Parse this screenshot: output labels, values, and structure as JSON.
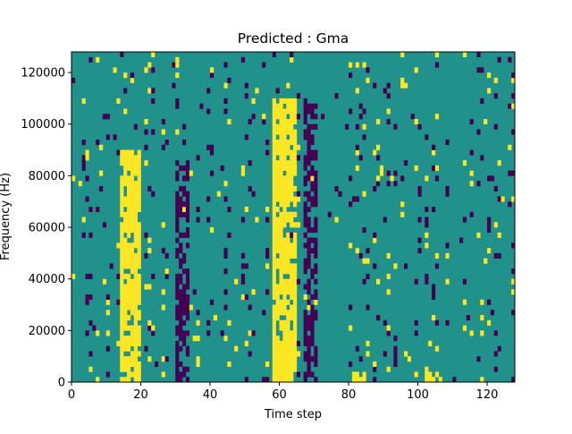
{
  "chart_data": {
    "type": "heatmap",
    "title": "Predicted : Gma",
    "xlabel": "Time step",
    "ylabel": "Frequency (Hz)",
    "xlim": [
      0,
      128
    ],
    "ylim": [
      0,
      128000
    ],
    "x_ticks": [
      0,
      20,
      40,
      60,
      80,
      100,
      120
    ],
    "y_ticks": [
      0,
      20000,
      40000,
      60000,
      80000,
      100000,
      120000
    ],
    "x_tick_labels": [
      "0",
      "20",
      "40",
      "60",
      "80",
      "100",
      "120"
    ],
    "y_tick_labels": [
      "0",
      "20000",
      "40000",
      "60000",
      "80000",
      "100000",
      "120000"
    ],
    "n_time_steps": 128,
    "n_freq_bins": 64,
    "value_levels": [
      -1,
      0,
      1
    ],
    "colors": {
      "-1": "#440154",
      "0": "#21918c",
      "1": "#fde725"
    },
    "high_bands": [
      {
        "x_start": 14,
        "x_end": 19,
        "freq_max": 90000
      },
      {
        "x_start": 58,
        "x_end": 64,
        "freq_max": 110000
      },
      {
        "x_start": 81,
        "x_end": 85,
        "freq_max": 4000
      },
      {
        "x_start": 102,
        "x_end": 106,
        "freq_max": 4000
      }
    ],
    "low_bands": [
      {
        "x_start": 67,
        "x_end": 70,
        "freq_max": 110000
      },
      {
        "x_start": 30,
        "x_end": 33,
        "freq_max": 85000
      }
    ]
  }
}
